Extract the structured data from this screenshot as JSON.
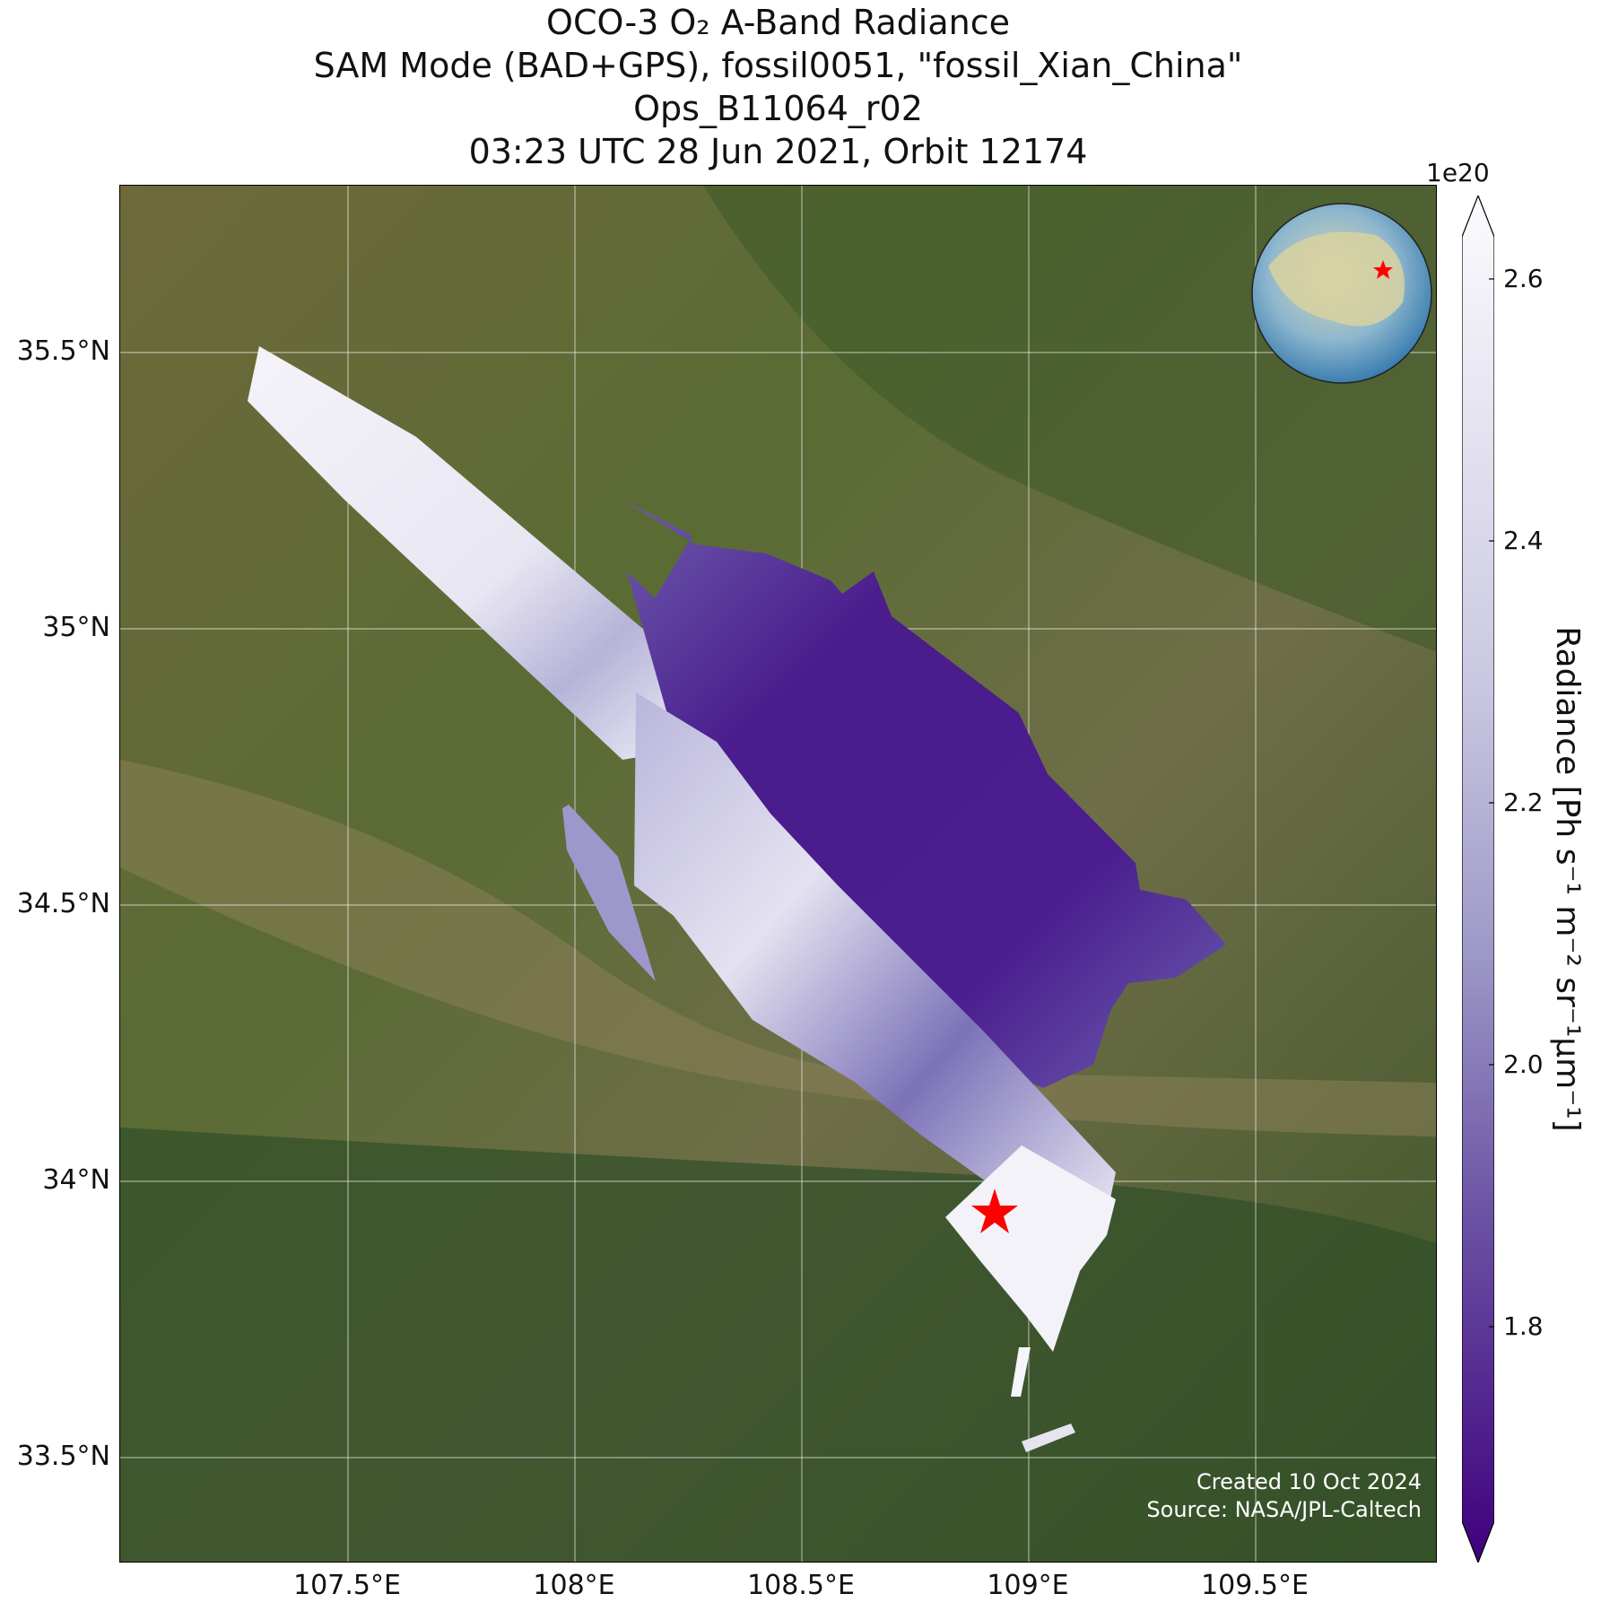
{
  "title_lines": [
    "OCO-3 O₂ A-Band Radiance",
    "SAM Mode (BAD+GPS), fossil0051, \"fossil_Xian_China\"",
    "Ops_B11064_r02",
    "03:23 UTC 28 Jun 2021, Orbit 12174"
  ],
  "axes": {
    "lat_ticks": [
      "35.5°N",
      "35°N",
      "34.5°N",
      "34°N",
      "33.5°N"
    ],
    "lon_ticks": [
      "107.5°E",
      "108°E",
      "108.5°E",
      "109°E",
      "109.5°E"
    ]
  },
  "colorbar": {
    "label": "Radiance [Ph s⁻¹ m⁻² sr⁻¹μm⁻¹]",
    "exponent": "1e20",
    "ticks": [
      "2.6",
      "2.4",
      "2.2",
      "2.0",
      "1.8"
    ],
    "colors": {
      "high": "#fcfbfd",
      "mid": "#9e9ac8",
      "low": "#3f007d"
    }
  },
  "target": {
    "name": "fossil_Xian_China",
    "marker_color": "#ff0000",
    "icon": "star-icon"
  },
  "inset_globe": {
    "icon": "globe-icon",
    "marker_color": "#ff0000"
  },
  "credits": {
    "created": "Created 10 Oct 2024",
    "source": "Source: NASA/JPL-Caltech"
  }
}
